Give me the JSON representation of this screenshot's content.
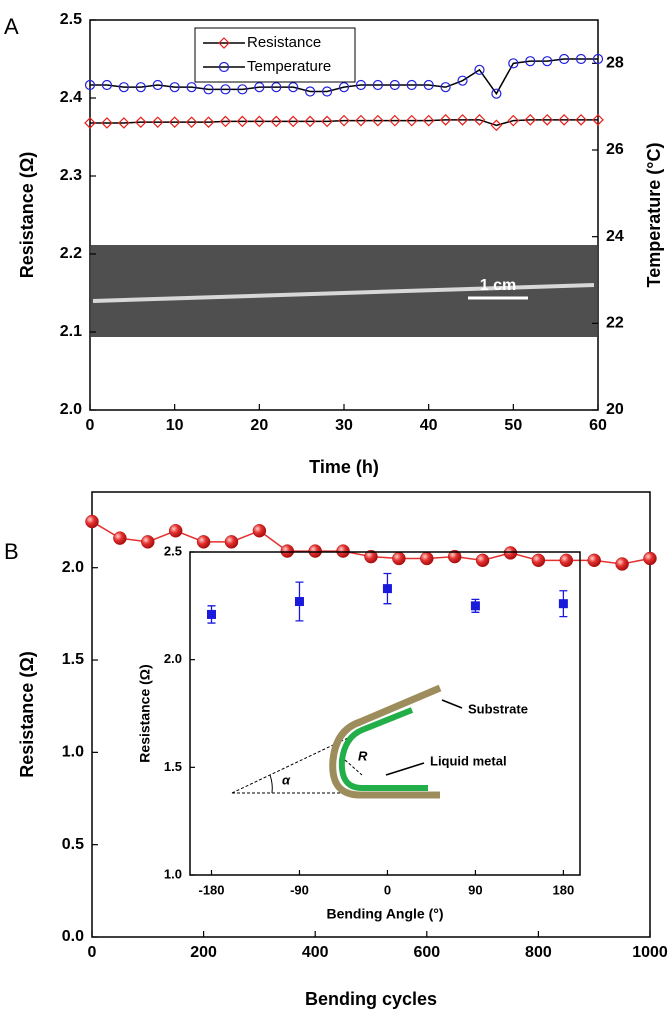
{
  "chart_data": [
    {
      "panel": "A",
      "type": "line",
      "x": [
        0,
        2,
        4,
        6,
        8,
        10,
        12,
        14,
        16,
        18,
        20,
        22,
        24,
        26,
        28,
        30,
        32,
        34,
        36,
        38,
        40,
        42,
        44,
        46,
        48,
        50,
        52,
        54,
        56,
        58,
        60
      ],
      "xlim": [
        0,
        60
      ],
      "xticks": [
        0,
        10,
        20,
        30,
        40,
        50,
        60
      ],
      "ylim": [
        2,
        2.5
      ],
      "yticks": [
        {
          "value": 2,
          "label": "2.0"
        },
        2.1,
        2.2,
        2.3,
        2.4,
        2.5
      ],
      "y2lim": [
        20,
        29
      ],
      "y2ticks": [
        20,
        22,
        24,
        26,
        28
      ],
      "x_label": "Time (h)",
      "y_label": "Resistance (Ω)",
      "y2_label": "Temperature (°C)",
      "legend": "upper left",
      "image_annotation": "1 cm",
      "series": [
        {
          "name": "Resistance",
          "color": "#e8201c",
          "marker": "diamond",
          "values": [
            2.368,
            2.368,
            2.368,
            2.369,
            2.369,
            2.369,
            2.369,
            2.369,
            2.37,
            2.37,
            2.37,
            2.37,
            2.37,
            2.37,
            2.37,
            2.371,
            2.371,
            2.371,
            2.371,
            2.371,
            2.371,
            2.372,
            2.372,
            2.372,
            2.365,
            2.371,
            2.372,
            2.372,
            2.372,
            2.372,
            2.372
          ]
        },
        {
          "name": "Temperature",
          "color": "#1f1fe0",
          "marker": "circle",
          "axis": "y2",
          "values": [
            27.5,
            27.5,
            27.45,
            27.45,
            27.5,
            27.45,
            27.45,
            27.4,
            27.4,
            27.4,
            27.45,
            27.45,
            27.45,
            27.35,
            27.35,
            27.45,
            27.5,
            27.5,
            27.5,
            27.5,
            27.5,
            27.45,
            27.6,
            27.85,
            27.3,
            28.0,
            28.05,
            28.05,
            28.1,
            28.1,
            28.1
          ]
        }
      ]
    },
    {
      "panel": "B",
      "type": "line",
      "x": [
        0,
        50,
        100,
        150,
        200,
        250,
        300,
        350,
        400,
        450,
        500,
        550,
        600,
        650,
        700,
        750,
        800,
        850,
        900,
        950,
        1000
      ],
      "xlim": [
        0,
        1000
      ],
      "xticks": [
        0,
        200,
        400,
        600,
        800,
        1000
      ],
      "ylim": [
        0,
        2.41
      ],
      "yticks": [
        {
          "value": 0,
          "label": "0.0"
        },
        0.5,
        {
          "value": 1,
          "label": "1.0"
        },
        1.5,
        {
          "value": 2,
          "label": "2.0"
        }
      ],
      "x_label": "Bending cycles",
      "y_label": "Resistance (Ω)",
      "series": [
        {
          "color": "#e53030",
          "marker": "sphere",
          "values": [
            2.25,
            2.16,
            2.14,
            2.2,
            2.14,
            2.14,
            2.2,
            2.09,
            2.09,
            2.09,
            2.06,
            2.05,
            2.05,
            2.06,
            2.04,
            2.08,
            2.04,
            2.04,
            2.04,
            2.02,
            2.05
          ]
        }
      ]
    },
    {
      "type": "scatter",
      "x": [
        -180,
        -90,
        0,
        90,
        180
      ],
      "xlim": [
        -202,
        197
      ],
      "xticks": [
        -180,
        -90,
        0,
        90,
        180
      ],
      "ylim": [
        1,
        2.5
      ],
      "yticks": [
        {
          "value": 1,
          "label": "1.0"
        },
        1.5,
        {
          "value": 2,
          "label": "2.0"
        },
        2.5
      ],
      "x_label": "Bending Angle (°)",
      "y_label": "Resistance (Ω)",
      "annotations": {
        "substrate": "Substrate",
        "liquid_metal": "Liquid metal",
        "angle": "α",
        "radius": "R"
      },
      "series": [
        {
          "color": "#1a1adb",
          "marker": "square",
          "values": [
            2.21,
            2.27,
            2.33,
            2.25,
            2.26
          ],
          "errors": [
            0.04,
            0.09,
            0.07,
            0.03,
            0.06
          ]
        }
      ]
    }
  ]
}
